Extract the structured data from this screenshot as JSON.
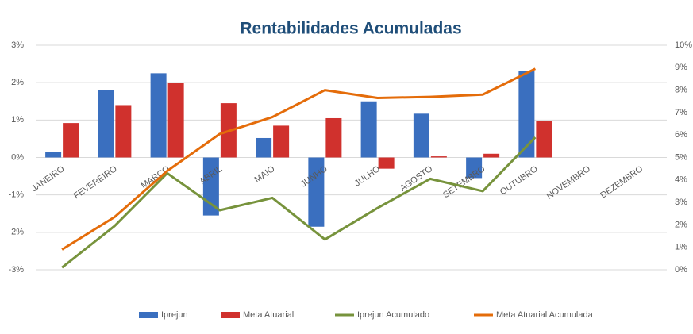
{
  "chart_data": {
    "type": "bar-line",
    "title": "Rentabilidades Acumuladas",
    "categories": [
      "JANEIRO",
      "FEVEREIRO",
      "MARÇO",
      "ABRIL",
      "MAIO",
      "JUNHO",
      "JULHO",
      "AGOSTO",
      "SETEMBRO",
      "OUTUBRO",
      "NOVEMBRO",
      "DEZEMBRO"
    ],
    "series": [
      {
        "name": "Iprejun",
        "type": "bar",
        "color": "#3a6fbf",
        "values": [
          0.15,
          1.8,
          2.25,
          -1.55,
          0.52,
          -1.85,
          1.5,
          1.17,
          -0.55,
          2.32,
          null,
          null
        ]
      },
      {
        "name": "Meta Atuarial",
        "type": "bar",
        "color": "#d0312d",
        "values": [
          0.92,
          1.4,
          2.0,
          1.45,
          0.85,
          1.05,
          -0.3,
          0.03,
          0.1,
          0.97,
          null,
          null
        ]
      },
      {
        "name": "Iprejun Acumulado",
        "type": "line",
        "axis": "y2",
        "color": "#77933c",
        "values": [
          0.1,
          1.95,
          4.3,
          2.65,
          3.2,
          1.35,
          2.75,
          4.05,
          3.5,
          5.9,
          null,
          null
        ]
      },
      {
        "name": "Meta Atuarial Acumulada",
        "type": "line",
        "axis": "y2",
        "color": "#e46c0a",
        "values": [
          0.9,
          2.35,
          4.4,
          6.05,
          6.8,
          8.0,
          7.65,
          7.7,
          7.8,
          8.95,
          null,
          null
        ]
      }
    ],
    "ylim": [
      -3,
      3
    ],
    "yticks": [
      {
        "value": 3,
        "label": "3%"
      },
      {
        "value": 2,
        "label": "2%"
      },
      {
        "value": 1,
        "label": "1%"
      },
      {
        "value": 0,
        "label": "0%"
      },
      {
        "value": -1,
        "label": "-1%"
      },
      {
        "value": -2,
        "label": "-2%"
      },
      {
        "value": -3,
        "label": "-3%"
      }
    ],
    "y2lim": [
      0,
      10
    ],
    "y2ticks": [
      {
        "value": 10,
        "label": "10%"
      },
      {
        "value": 9,
        "label": "9%"
      },
      {
        "value": 8,
        "label": "8%"
      },
      {
        "value": 7,
        "label": "7%"
      },
      {
        "value": 6,
        "label": "6%"
      },
      {
        "value": 5,
        "label": "5%"
      },
      {
        "value": 4,
        "label": "4%"
      },
      {
        "value": 3,
        "label": "3%"
      },
      {
        "value": 2,
        "label": "2%"
      },
      {
        "value": 1,
        "label": "1%"
      },
      {
        "value": 0,
        "label": "0%"
      }
    ],
    "grid": true,
    "legend": "bottom"
  }
}
